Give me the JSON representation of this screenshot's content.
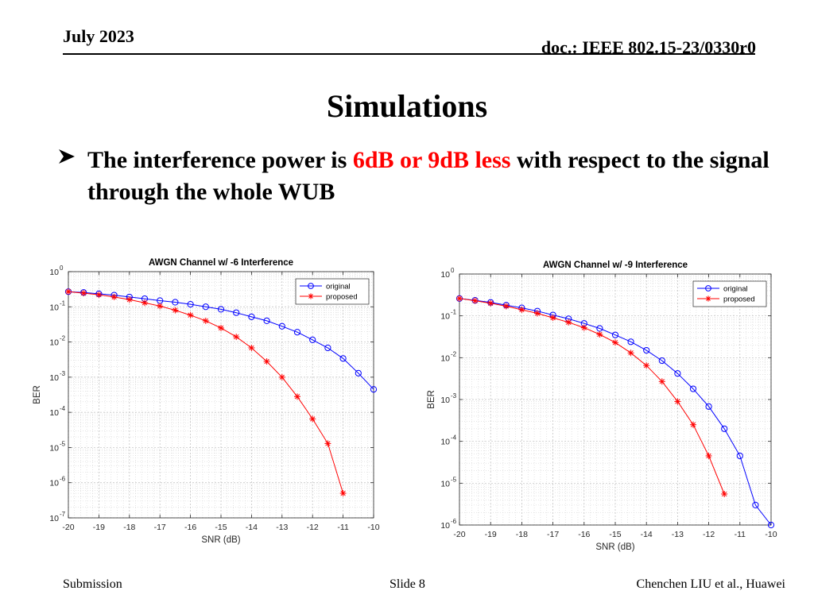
{
  "header": {
    "date": "July 2023",
    "doc": "doc.: IEEE 802.15-23/0330r0"
  },
  "slide": {
    "title": "Simulations",
    "bullet_pre": "The interference power is ",
    "bullet_highlight": "6dB or 9dB less",
    "bullet_post": " with respect to the signal through the whole WUB",
    "highlight_color": "#ff0000"
  },
  "footer": {
    "left": "Submission",
    "center": "Slide 8",
    "right": "Chenchen LIU et al., Huawei"
  },
  "chart_data": [
    {
      "type": "line",
      "title": "AWGN Channel w/ -6 Interference",
      "xlabel": "SNR (dB)",
      "ylabel": "BER",
      "yscale": "log",
      "xlim": [
        -20,
        -10
      ],
      "ylim": [
        1e-07,
        1
      ],
      "xticks": [
        -20,
        -19,
        -18,
        -17,
        -16,
        -15,
        -14,
        -13,
        -12,
        -11,
        -10
      ],
      "yticks_exp": [
        0,
        -1,
        -2,
        -3,
        -4,
        -5,
        -6,
        -7
      ],
      "grid": true,
      "minor_grid": true,
      "legend": "top-right",
      "series": [
        {
          "name": "original",
          "color": "#0000ff",
          "marker": "circle",
          "x": [
            -20,
            -19.5,
            -19,
            -18.5,
            -18,
            -17.5,
            -17,
            -16.5,
            -16,
            -15.5,
            -15,
            -14.5,
            -14,
            -13.5,
            -13,
            -12.5,
            -12,
            -11.5,
            -11,
            -10.5,
            -10
          ],
          "y": [
            0.27,
            0.255,
            0.235,
            0.215,
            0.19,
            0.17,
            0.15,
            0.135,
            0.118,
            0.1,
            0.085,
            0.068,
            0.052,
            0.04,
            0.028,
            0.019,
            0.0115,
            0.0068,
            0.0034,
            0.0013,
            0.00045
          ]
        },
        {
          "name": "proposed",
          "color": "#ff0000",
          "marker": "asterisk",
          "x": [
            -20,
            -19.5,
            -19,
            -18.5,
            -18,
            -17.5,
            -17,
            -16.5,
            -16,
            -15.5,
            -15,
            -14.5,
            -14,
            -13.5,
            -13,
            -12.5,
            -12,
            -11.5,
            -11
          ],
          "y": [
            0.27,
            0.245,
            0.22,
            0.19,
            0.16,
            0.13,
            0.105,
            0.08,
            0.058,
            0.04,
            0.025,
            0.014,
            0.0068,
            0.0028,
            0.001,
            0.00028,
            6.5e-05,
            1.3e-05,
            5e-07
          ]
        }
      ]
    },
    {
      "type": "line",
      "title": "AWGN Channel w/ -9 Interference",
      "xlabel": "SNR (dB)",
      "ylabel": "BER",
      "yscale": "log",
      "xlim": [
        -20,
        -10
      ],
      "ylim": [
        1e-06,
        1
      ],
      "xticks": [
        -20,
        -19,
        -18,
        -17,
        -16,
        -15,
        -14,
        -13,
        -12,
        -11,
        -10
      ],
      "yticks_exp": [
        0,
        -1,
        -2,
        -3,
        -4,
        -5,
        -6
      ],
      "grid": true,
      "minor_grid": true,
      "legend": "top-right",
      "series": [
        {
          "name": "original",
          "color": "#0000ff",
          "marker": "circle",
          "x": [
            -20,
            -19.5,
            -19,
            -18.5,
            -18,
            -17.5,
            -17,
            -16.5,
            -16,
            -15.5,
            -15,
            -14.5,
            -14,
            -13.5,
            -13,
            -12.5,
            -12,
            -11.5,
            -11,
            -10.5,
            -10
          ],
          "y": [
            0.26,
            0.235,
            0.21,
            0.18,
            0.155,
            0.13,
            0.105,
            0.085,
            0.066,
            0.05,
            0.035,
            0.024,
            0.015,
            0.0085,
            0.0042,
            0.0018,
            0.00068,
            0.0002,
            4.5e-05,
            3e-06,
            1e-06
          ]
        },
        {
          "name": "proposed",
          "color": "#ff0000",
          "marker": "asterisk",
          "x": [
            -20,
            -19.5,
            -19,
            -18.5,
            -18,
            -17.5,
            -17,
            -16.5,
            -16,
            -15.5,
            -15,
            -14.5,
            -14,
            -13.5,
            -13,
            -12.5,
            -12,
            -11.5
          ],
          "y": [
            0.26,
            0.23,
            0.2,
            0.17,
            0.14,
            0.115,
            0.09,
            0.07,
            0.052,
            0.036,
            0.023,
            0.013,
            0.0065,
            0.0027,
            0.0009,
            0.00025,
            4.5e-05,
            5.5e-06
          ]
        }
      ]
    }
  ]
}
